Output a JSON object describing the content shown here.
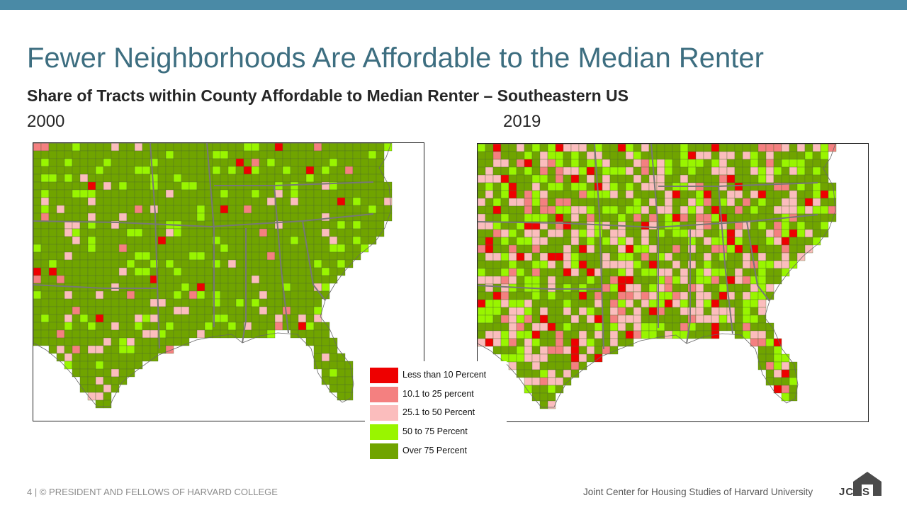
{
  "header": {
    "title": "Fewer Neighborhoods Are Affordable to the Median Renter",
    "subtitle": "Share of Tracts within County Affordable to Median Renter – Southeastern US"
  },
  "maps": [
    {
      "year": "2000",
      "weights": [
        0.012,
        0.012,
        0.055,
        0.11,
        0.811
      ]
    },
    {
      "year": "2019",
      "weights": [
        0.07,
        0.08,
        0.22,
        0.2,
        0.43
      ]
    }
  ],
  "legend": {
    "items": [
      {
        "label": "Less than 10 Percent",
        "color": "#ee0000"
      },
      {
        "label": "10.1 to 25 percent",
        "color": "#f48080"
      },
      {
        "label": "25.1 to 50 Percent",
        "color": "#fbbdbd"
      },
      {
        "label": "50 to 75 Percent",
        "color": "#99f500"
      },
      {
        "label": "Over 75 Percent",
        "color": "#70a400"
      }
    ]
  },
  "colors": {
    "accent_bar": "#4a8aa6",
    "title": "#3d6e80",
    "state_border": "#777777"
  },
  "footer": {
    "left": "4 | © PRESIDENT AND FELLOWS OF HARVARD COLLEGE",
    "right": "Joint Center for Housing Studies of Harvard University",
    "brand": "JCHS"
  }
}
